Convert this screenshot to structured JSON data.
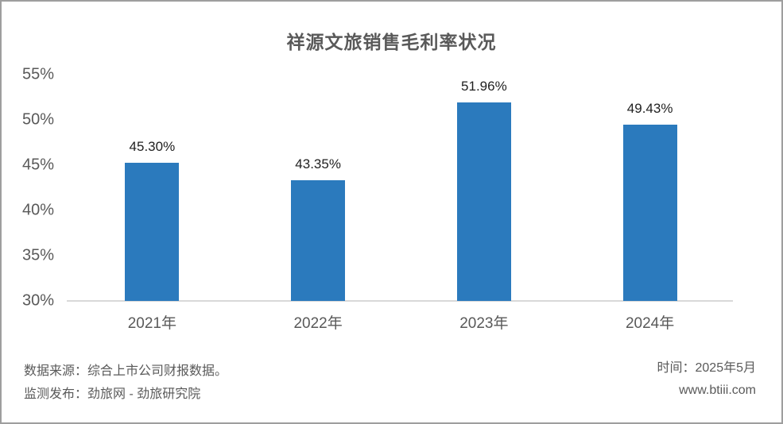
{
  "chart_data": {
    "type": "bar",
    "title": "祥源文旅销售毛利率状况",
    "categories": [
      "2021年",
      "2022年",
      "2023年",
      "2024年"
    ],
    "values": [
      45.3,
      43.35,
      51.96,
      49.43
    ],
    "value_labels": [
      "45.30%",
      "43.35%",
      "51.96%",
      "49.43%"
    ],
    "ylim": [
      30,
      55
    ],
    "yticks": [
      30,
      35,
      40,
      45,
      50,
      55
    ],
    "ytick_labels": [
      "30%",
      "35%",
      "40%",
      "45%",
      "50%",
      "55%"
    ],
    "bar_color": "#2B7ABD",
    "baseline_color": "#d9d9d9",
    "grid": false,
    "legend": null
  },
  "footer": {
    "source_line": "数据来源：综合上市公司财报数据。",
    "publisher_line": "监测发布：劲旅网 - 劲旅研究院",
    "time_line": "时间：2025年5月",
    "website": "www.btiii.com"
  },
  "colors": {
    "border": "#9e9e9e",
    "title_text": "#595959",
    "axis_text": "#595959",
    "value_label_text": "#1f1f1f",
    "footer_text": "#595959"
  }
}
